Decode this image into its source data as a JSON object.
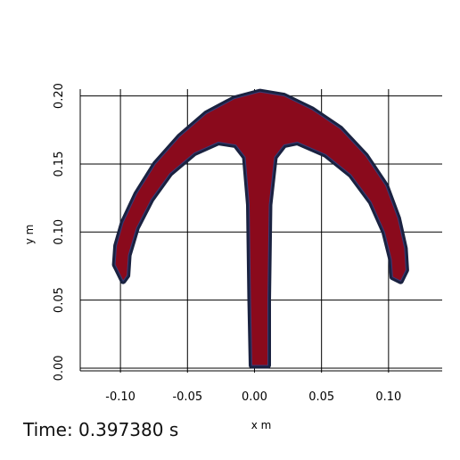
{
  "chart_data": {
    "type": "contour",
    "xlabel": "x m",
    "ylabel": "y m",
    "xlim": [
      -0.13,
      0.14
    ],
    "ylim": [
      -0.002,
      0.205
    ],
    "x_ticks": [
      -0.1,
      -0.05,
      0.0,
      0.05,
      0.1
    ],
    "x_tick_labels": [
      "-0.10",
      "-0.05",
      "0.00",
      "0.05",
      "0.10"
    ],
    "y_ticks": [
      0.0,
      0.05,
      0.1,
      0.15,
      0.2
    ],
    "y_tick_labels": [
      "0.00",
      "0.05",
      "0.10",
      "0.15",
      "0.20"
    ],
    "grid": true,
    "fill_color": "#8a0a1c",
    "edge_color": "#1a2240",
    "shape_outline": [
      [
        -0.098,
        0.064
      ],
      [
        -0.104,
        0.076
      ],
      [
        -0.103,
        0.09
      ],
      [
        -0.098,
        0.107
      ],
      [
        -0.088,
        0.128
      ],
      [
        -0.074,
        0.15
      ],
      [
        -0.056,
        0.17
      ],
      [
        -0.036,
        0.187
      ],
      [
        -0.015,
        0.198
      ],
      [
        0.004,
        0.203
      ],
      [
        0.022,
        0.2
      ],
      [
        0.043,
        0.19
      ],
      [
        0.064,
        0.176
      ],
      [
        0.083,
        0.156
      ],
      [
        0.098,
        0.134
      ],
      [
        0.107,
        0.11
      ],
      [
        0.112,
        0.088
      ],
      [
        0.113,
        0.072
      ],
      [
        0.109,
        0.064
      ],
      [
        0.103,
        0.067
      ],
      [
        0.102,
        0.08
      ],
      [
        0.097,
        0.1
      ],
      [
        0.087,
        0.122
      ],
      [
        0.072,
        0.142
      ],
      [
        0.053,
        0.157
      ],
      [
        0.032,
        0.166
      ],
      [
        0.022,
        0.164
      ],
      [
        0.015,
        0.155
      ],
      [
        0.011,
        0.12
      ],
      [
        0.01,
        0.05
      ],
      [
        0.01,
        0.002
      ],
      [
        -0.002,
        0.002
      ],
      [
        -0.003,
        0.05
      ],
      [
        -0.004,
        0.12
      ],
      [
        -0.007,
        0.155
      ],
      [
        -0.014,
        0.164
      ],
      [
        -0.027,
        0.166
      ],
      [
        -0.045,
        0.158
      ],
      [
        -0.063,
        0.143
      ],
      [
        -0.077,
        0.124
      ],
      [
        -0.088,
        0.103
      ],
      [
        -0.094,
        0.083
      ],
      [
        -0.095,
        0.068
      ],
      [
        -0.098,
        0.064
      ]
    ]
  },
  "time_readout": "Time: 0.397380 s"
}
